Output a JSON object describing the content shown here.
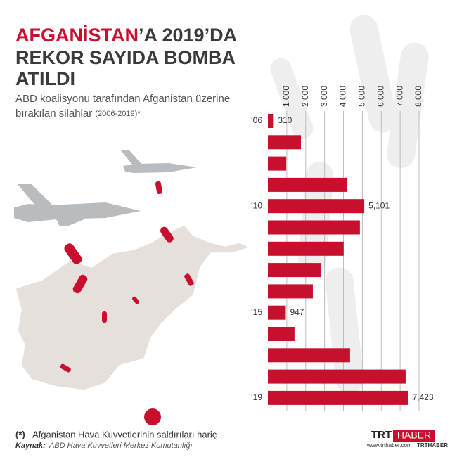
{
  "header": {
    "title_highlight": "AFGANİSTAN",
    "title_rest": "’A 2019’DA",
    "title_line2": "REKOR SAYIDA BOMBA",
    "title_line3": "ATILDI",
    "subtitle_line1": "ABD koalisyonu tarafından Afganistan üzerine",
    "subtitle_line2": "bırakılan silahlar",
    "subtitle_note": "(2006-2019)*"
  },
  "chart_data": {
    "type": "bar",
    "orientation": "horizontal",
    "color": "#c8102e",
    "categories": [
      "‘06",
      null,
      null,
      null,
      "‘10",
      null,
      null,
      null,
      null,
      "‘15",
      null,
      null,
      null,
      "‘19"
    ],
    "values": [
      310,
      1750,
      970,
      4200,
      5101,
      4870,
      4010,
      2790,
      2380,
      947,
      1410,
      4350,
      7290,
      7423
    ],
    "value_labels": [
      "310",
      null,
      null,
      null,
      "5,101",
      null,
      null,
      null,
      null,
      "947",
      null,
      null,
      null,
      "7,423"
    ],
    "xlim": [
      0,
      8000
    ],
    "xticks": [
      {
        "value": 1000,
        "label": "1,000"
      },
      {
        "value": 2000,
        "label": "2,000"
      },
      {
        "value": 3000,
        "label": "3,000"
      },
      {
        "value": 4000,
        "label": "4,000"
      },
      {
        "value": 5000,
        "label": "5,000"
      },
      {
        "value": 6000,
        "label": "6,000"
      },
      {
        "value": 7000,
        "label": "7,000"
      },
      {
        "value": 8000,
        "label": "8,000"
      }
    ],
    "grid": true
  },
  "footer": {
    "note_mark": "(*)",
    "note": "Afganistan Hava Kuvvetlerinin saldırıları hariç",
    "source_label": "Kaynak:",
    "source": "ABD Hava Kuvvetleri Merkez Komutanlığı",
    "logo_trt": "TRT",
    "logo_haber": "HABER",
    "website": "www.trthaber.com",
    "social": "TRTHABER"
  }
}
